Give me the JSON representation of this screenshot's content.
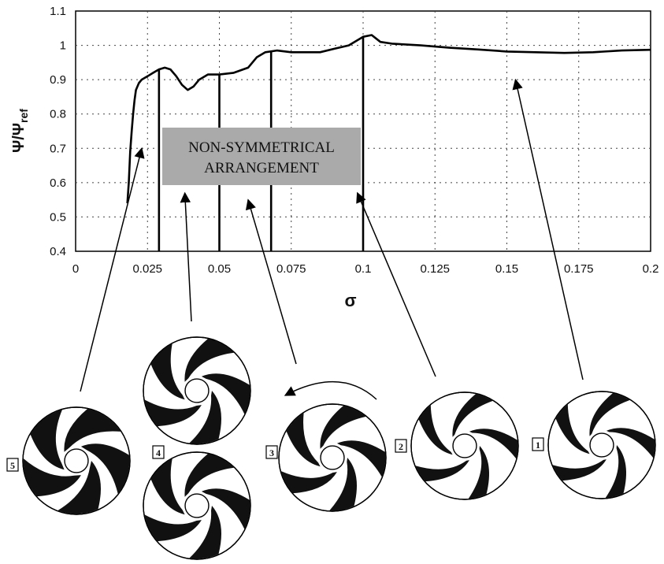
{
  "chart_data": {
    "type": "line",
    "title": "",
    "xlabel": "σ",
    "ylabel": "Ψ/Ψ",
    "ylabel_sub": "ref",
    "xlim": [
      0,
      0.2
    ],
    "ylim": [
      0.4,
      1.1
    ],
    "x_ticks": [
      "0",
      "0.025",
      "0.05",
      "0.075",
      "0.1",
      "0.125",
      "0.15",
      "0.175",
      "0.2"
    ],
    "y_ticks": [
      "0.4",
      "0.5",
      "0.6",
      "0.7",
      "0.8",
      "0.9",
      "1",
      "1.1"
    ],
    "grid": true,
    "series": [
      {
        "x": [
          0.018,
          0.0185,
          0.019,
          0.0195,
          0.02,
          0.0205,
          0.021,
          0.022,
          0.023,
          0.025,
          0.027,
          0.029,
          0.031,
          0.033,
          0.035,
          0.037,
          0.039,
          0.041,
          0.043,
          0.046,
          0.05,
          0.055,
          0.06,
          0.063,
          0.066,
          0.07,
          0.075,
          0.08,
          0.085,
          0.09,
          0.095,
          0.1,
          0.103,
          0.106,
          0.11,
          0.12,
          0.13,
          0.14,
          0.15,
          0.16,
          0.17,
          0.18,
          0.19,
          0.2
        ],
        "y": [
          0.54,
          0.6,
          0.69,
          0.75,
          0.8,
          0.84,
          0.87,
          0.89,
          0.9,
          0.91,
          0.92,
          0.93,
          0.935,
          0.93,
          0.91,
          0.885,
          0.87,
          0.88,
          0.9,
          0.915,
          0.915,
          0.92,
          0.935,
          0.965,
          0.98,
          0.985,
          0.98,
          0.98,
          0.98,
          0.99,
          1.0,
          1.025,
          1.03,
          1.01,
          1.005,
          1.0,
          0.993,
          0.988,
          0.982,
          0.98,
          0.978,
          0.98,
          0.985,
          0.987
        ]
      }
    ],
    "vertical_lines_x": [
      0.029,
      0.05,
      0.068,
      0.1
    ],
    "annotation": {
      "lines": [
        "NON-SYMMETRICAL",
        "ARRANGEMENT"
      ],
      "fill": "#aaaaaa"
    },
    "arrow_targets": [
      {
        "label": "5",
        "x": 0.023,
        "y": 0.7
      },
      {
        "label": "4",
        "x": 0.038,
        "y": 0.57
      },
      {
        "label": "3",
        "x": 0.06,
        "y": 0.55
      },
      {
        "label": "2",
        "x": 0.098,
        "y": 0.57
      },
      {
        "label": "1",
        "x": 0.153,
        "y": 0.9
      }
    ]
  },
  "impellers": [
    {
      "label": "5",
      "blades": "dark-dense"
    },
    {
      "label": "4",
      "blades": "dark-medium"
    },
    {
      "label": "3",
      "blades": "dark-medium"
    },
    {
      "label": "2",
      "blades": "dark-light"
    },
    {
      "label": "1",
      "blades": "dark-light"
    }
  ],
  "colors": {
    "line": "#000000",
    "grid": "#444444",
    "box": "#aaaaaa",
    "blade": "#111111"
  }
}
